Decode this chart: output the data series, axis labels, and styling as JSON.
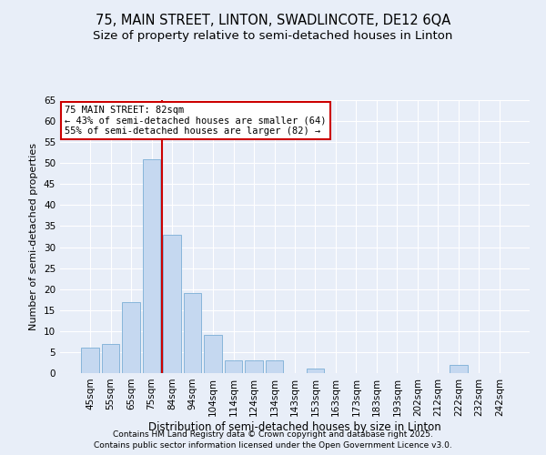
{
  "title1": "75, MAIN STREET, LINTON, SWADLINCOTE, DE12 6QA",
  "title2": "Size of property relative to semi-detached houses in Linton",
  "xlabel": "Distribution of semi-detached houses by size in Linton",
  "ylabel": "Number of semi-detached properties",
  "categories": [
    "45sqm",
    "55sqm",
    "65sqm",
    "75sqm",
    "84sqm",
    "94sqm",
    "104sqm",
    "114sqm",
    "124sqm",
    "134sqm",
    "143sqm",
    "153sqm",
    "163sqm",
    "173sqm",
    "183sqm",
    "193sqm",
    "202sqm",
    "212sqm",
    "222sqm",
    "232sqm",
    "242sqm"
  ],
  "values": [
    6,
    7,
    17,
    51,
    33,
    19,
    9,
    3,
    3,
    3,
    0,
    1,
    0,
    0,
    0,
    0,
    0,
    0,
    2,
    0,
    0
  ],
  "bar_color": "#c5d8f0",
  "bar_edge_color": "#7aaed6",
  "vline_index": 3.5,
  "vline_color": "#cc0000",
  "annotation_title": "75 MAIN STREET: 82sqm",
  "annotation_line1": "← 43% of semi-detached houses are smaller (64)",
  "annotation_line2": "55% of semi-detached houses are larger (82) →",
  "annotation_box_color": "#cc0000",
  "ylim": [
    0,
    65
  ],
  "yticks": [
    0,
    5,
    10,
    15,
    20,
    25,
    30,
    35,
    40,
    45,
    50,
    55,
    60,
    65
  ],
  "footnote1": "Contains HM Land Registry data © Crown copyright and database right 2025.",
  "footnote2": "Contains public sector information licensed under the Open Government Licence v3.0.",
  "bg_color": "#e8eef8",
  "grid_color": "#ffffff",
  "title1_fontsize": 10.5,
  "title2_fontsize": 9.5,
  "annot_fontsize": 7.5,
  "ylabel_fontsize": 8,
  "xlabel_fontsize": 8.5,
  "tick_fontsize": 7.5,
  "footnote_fontsize": 6.5
}
